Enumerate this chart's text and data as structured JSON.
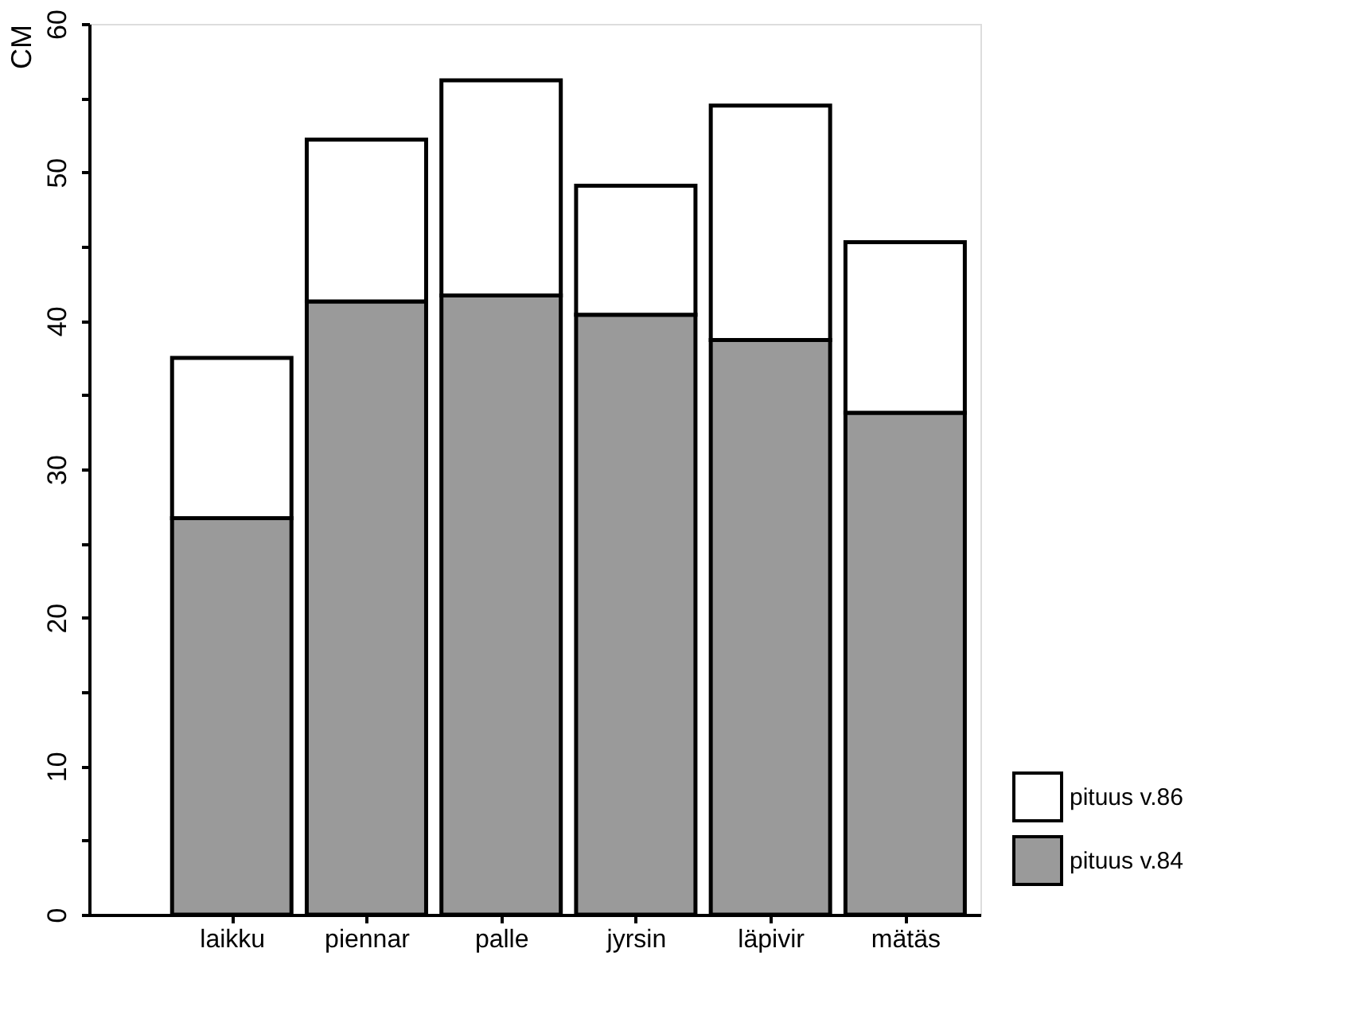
{
  "chart_data": {
    "type": "bar",
    "stacked": true,
    "ylabel": "CM",
    "categories": [
      "laikku",
      "piennar",
      "palle",
      "jyrsin",
      "läpivir",
      "mätäs"
    ],
    "series": [
      {
        "name": "pituus v.84",
        "color": "#9a9a9a",
        "values": [
          26.7,
          41.3,
          41.7,
          40.4,
          38.7,
          33.8
        ]
      },
      {
        "name": "pituus v.86",
        "color": "#ffffff",
        "values": [
          10.8,
          10.9,
          14.5,
          8.7,
          15.8,
          11.5
        ]
      }
    ],
    "ylim": [
      0,
      60
    ],
    "yticks": [
      0,
      {
        "value": 5,
        "label": null
      },
      10,
      {
        "value": 15,
        "label": null
      },
      20,
      {
        "value": 25,
        "label": null
      },
      30,
      {
        "value": 35,
        "label": null
      },
      40,
      {
        "value": 45,
        "label": null
      },
      50,
      {
        "value": 55,
        "label": null
      },
      60
    ],
    "grid": false,
    "legend": "bottom right"
  }
}
